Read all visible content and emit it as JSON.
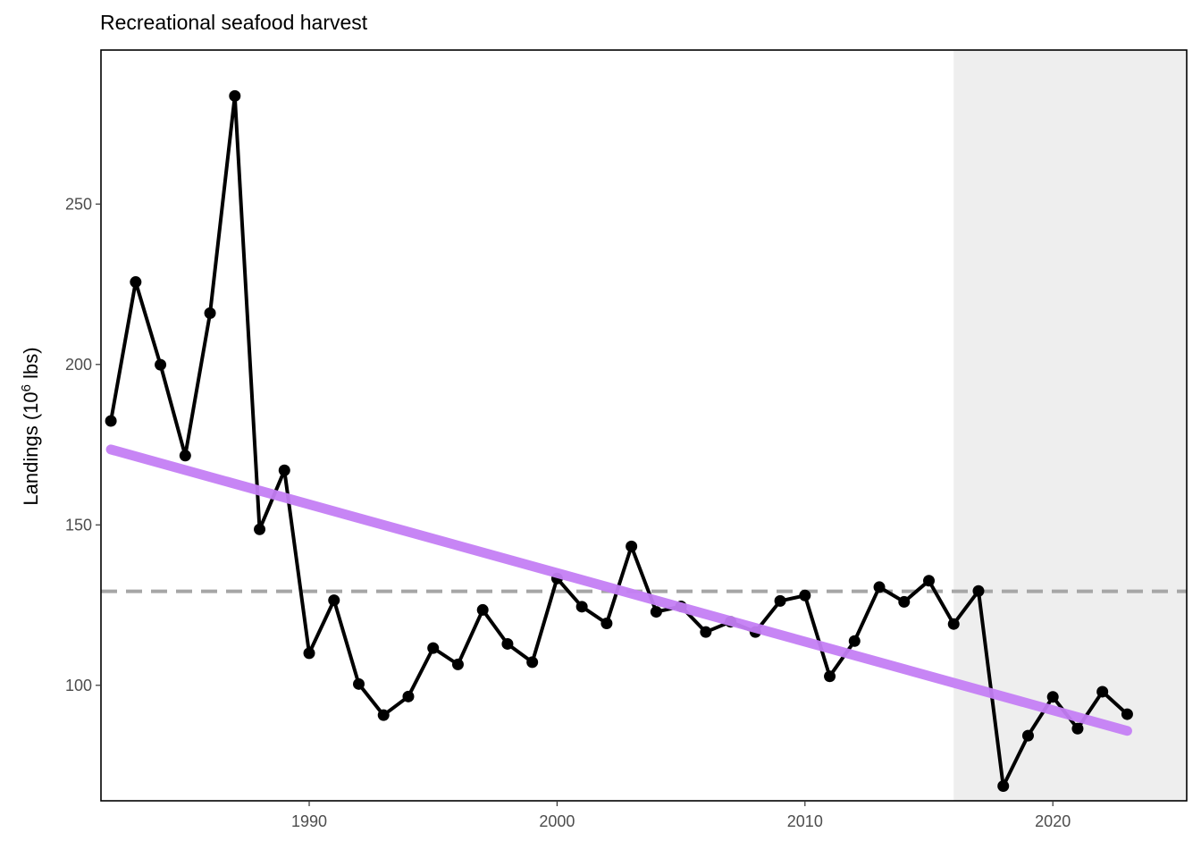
{
  "chart_data": {
    "type": "line",
    "title": "Recreational seafood harvest",
    "xlabel": "",
    "ylabel": "Landings (10",
    "ylabel_superscript": "6",
    "ylabel_suffix": " lbs)",
    "xlim": [
      1981.6,
      2025.4
    ],
    "ylim": [
      64,
      298
    ],
    "x_ticks": [
      1990,
      2000,
      2010,
      2020
    ],
    "y_ticks": [
      100,
      150,
      200,
      250
    ],
    "x": [
      1982,
      1983,
      1984,
      1985,
      1986,
      1987,
      1988,
      1989,
      1990,
      1991,
      1992,
      1993,
      1994,
      1995,
      1996,
      1997,
      1998,
      1999,
      2000,
      2001,
      2002,
      2003,
      2004,
      2005,
      2006,
      2007,
      2008,
      2009,
      2010,
      2011,
      2012,
      2013,
      2014,
      2015,
      2016,
      2017,
      2018,
      2019,
      2020,
      2021,
      2022,
      2023
    ],
    "values": [
      182.4,
      225.7,
      199.9,
      171.6,
      216.0,
      283.7,
      148.6,
      167.0,
      110.0,
      126.5,
      100.4,
      90.7,
      96.5,
      111.6,
      106.5,
      123.5,
      112.9,
      107.2,
      133.3,
      124.5,
      119.3,
      143.3,
      122.9,
      124.6,
      116.6,
      119.8,
      116.6,
      126.3,
      128.0,
      102.8,
      113.8,
      130.6,
      126.0,
      132.6,
      119.1,
      129.4,
      68.6,
      84.3,
      96.4,
      86.5,
      98.0,
      91.0
    ],
    "trend_line": {
      "x": [
        1982,
        2023
      ],
      "y": [
        173.5,
        85.8
      ],
      "color": "#c47ef4"
    },
    "mean_line": {
      "y": 129.3,
      "style": "dashed",
      "color": "#a6a6a6"
    },
    "highlight_region": {
      "x": [
        2016,
        2025.4
      ],
      "color": "#eeeeee"
    },
    "line_color": "#000000",
    "grid": false,
    "legend": "none"
  }
}
